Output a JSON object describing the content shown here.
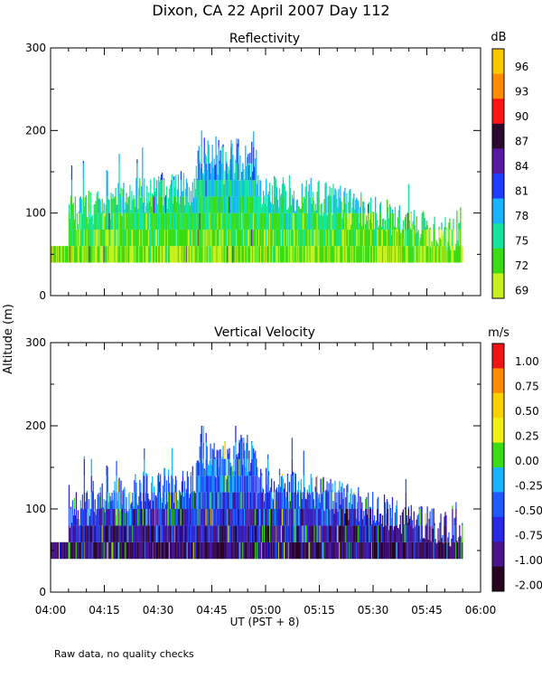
{
  "figure": {
    "title": "Dixon, CA 22 April 2007  Day 112",
    "ylabel": "Altitude (m)",
    "xlabel": "UT  (PST + 8)",
    "footnote": "Raw data, no quality checks",
    "xticks": [
      "04:00",
      "04:15",
      "04:30",
      "04:45",
      "05:00",
      "05:15",
      "05:30",
      "05:45",
      "06:00"
    ]
  },
  "chart_data": [
    {
      "type": "heatmap",
      "title": "Reflectivity",
      "xlabel": "UT  (PST + 8)",
      "ylabel": "Altitude (m)",
      "xlim": [
        "04:00",
        "06:00"
      ],
      "ylim": [
        0,
        300
      ],
      "yticks": [
        0,
        100,
        200,
        300
      ],
      "data_extent": {
        "start": "04:00",
        "end": "05:55",
        "min_altitude": 40,
        "max_altitude": 200
      },
      "colorbar": {
        "unit": "dB",
        "tick_labels": [
          "96",
          "93",
          "90",
          "87",
          "84",
          "81",
          "78",
          "75",
          "72",
          "69"
        ],
        "colors": [
          "#f8c800",
          "#ff8c00",
          "#ff1414",
          "#2a0a2e",
          "#5a1aa0",
          "#1e3cff",
          "#18b4ff",
          "#14e6a0",
          "#3cdc14",
          "#c8f01e"
        ]
      }
    },
    {
      "type": "heatmap",
      "title": "Vertical Velocity",
      "xlabel": "UT  (PST + 8)",
      "ylabel": "Altitude (m)",
      "xlim": [
        "04:00",
        "06:00"
      ],
      "ylim": [
        0,
        300
      ],
      "yticks": [
        0,
        100,
        200,
        300
      ],
      "data_extent": {
        "start": "04:00",
        "end": "05:55",
        "min_altitude": 40,
        "max_altitude": 200
      },
      "colorbar": {
        "unit": "m/s",
        "tick_labels": [
          "1.00",
          "0.75",
          "0.50",
          "0.25",
          "0.00",
          "-0.25",
          "-0.50",
          "-0.75",
          "-1.00",
          "-2.00"
        ],
        "colors": [
          "#f01414",
          "#ff8c00",
          "#f8d200",
          "#f0f014",
          "#3cdc14",
          "#18b4ff",
          "#1e5aff",
          "#2828e6",
          "#4a148c",
          "#28051e"
        ]
      }
    }
  ]
}
